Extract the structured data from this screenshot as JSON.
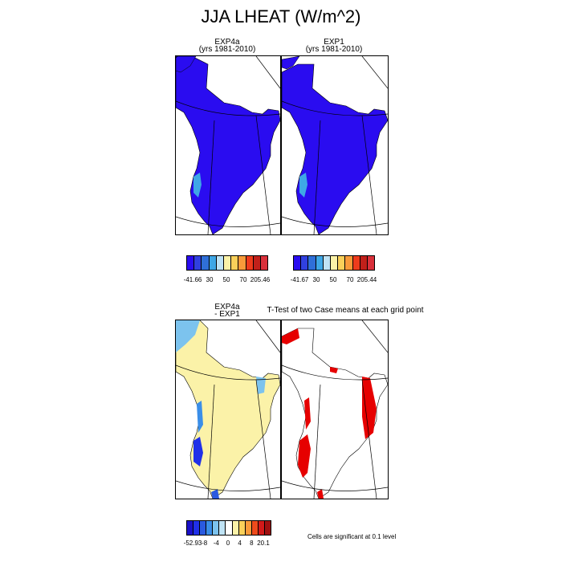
{
  "chart_data": [
    {
      "type": "heatmap",
      "title": "EXP4a",
      "subtitle": "(yrs 1981-2010)",
      "colorbar": {
        "colors": [
          "#2a0cf0",
          "#3040e0",
          "#2f6fd8",
          "#3ea7e6",
          "#bfe3f5",
          "#fbf2a8",
          "#f9d05a",
          "#f89a3a",
          "#ee3b1c",
          "#c1201a",
          "#d9303a"
        ],
        "labels": [
          "-41.66",
          "30",
          "50",
          "70",
          "205.46"
        ]
      }
    },
    {
      "type": "heatmap",
      "title": "EXP1",
      "subtitle": "(yrs 1981-2010)",
      "colorbar": {
        "colors": [
          "#2a0cf0",
          "#3040e0",
          "#2f6fd8",
          "#3ea7e6",
          "#bfe3f5",
          "#fbf2a8",
          "#f9d05a",
          "#f89a3a",
          "#ee3b1c",
          "#c1201a",
          "#d9303a"
        ],
        "labels": [
          "-41.67",
          "30",
          "50",
          "70",
          "205.44"
        ]
      }
    },
    {
      "type": "heatmap",
      "title": "EXP4a",
      "subtitle": "- EXP1",
      "colorbar": {
        "colors": [
          "#1a10c8",
          "#2030e8",
          "#2a5ae0",
          "#3a8ee8",
          "#7cc3ee",
          "#bfe3f5",
          "#ffffff",
          "#fbf2a8",
          "#f9d05a",
          "#f89a3a",
          "#ee4b1c",
          "#d21a1a",
          "#a01010"
        ],
        "labels": [
          "-52.93",
          "-8",
          "-4",
          "0",
          "4",
          "8",
          "20.1"
        ]
      }
    },
    {
      "type": "heatmap",
      "title": "T-Test of two Case means at each grid point",
      "note": "Cells are significant at 0.1 level"
    }
  ],
  "colors": {
    "blue": "#2a0cf0",
    "lightblue": "#7cc3ee",
    "yellow": "#fbf2a8",
    "red": "#e60000"
  }
}
